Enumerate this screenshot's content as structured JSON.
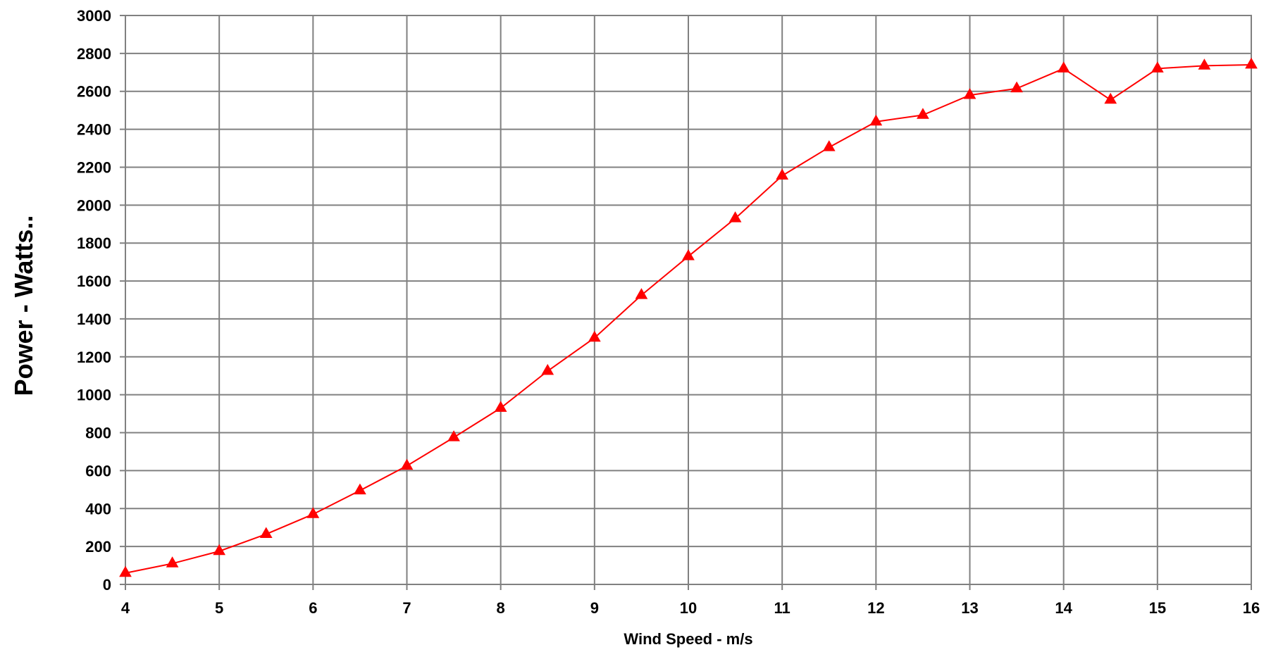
{
  "chart_data": {
    "type": "line",
    "title": "",
    "xlabel": "Wind Speed - m/s",
    "ylabel": "Power - Watts..",
    "xlim": [
      4,
      16
    ],
    "ylim": [
      0,
      3000
    ],
    "x_ticks": [
      4,
      5,
      6,
      7,
      8,
      9,
      10,
      11,
      12,
      13,
      14,
      15,
      16
    ],
    "y_ticks": [
      0,
      200,
      400,
      600,
      800,
      1000,
      1200,
      1400,
      1600,
      1800,
      2000,
      2200,
      2400,
      2600,
      2800,
      3000
    ],
    "grid": true,
    "legend": "none",
    "series": [
      {
        "color": "#ff0000",
        "marker": "triangle",
        "x": [
          4,
          4.5,
          5,
          5.5,
          6,
          6.5,
          7,
          7.5,
          8,
          8.5,
          9,
          9.5,
          10,
          10.5,
          11,
          11.5,
          12,
          12.5,
          13,
          13.5,
          14,
          14.5,
          15,
          15.5,
          16
        ],
        "y": [
          60,
          110,
          175,
          265,
          370,
          495,
          625,
          775,
          930,
          1125,
          1300,
          1525,
          1730,
          1930,
          2155,
          2305,
          2440,
          2475,
          2580,
          2615,
          2720,
          2555,
          2720,
          2735,
          2740
        ]
      }
    ]
  }
}
